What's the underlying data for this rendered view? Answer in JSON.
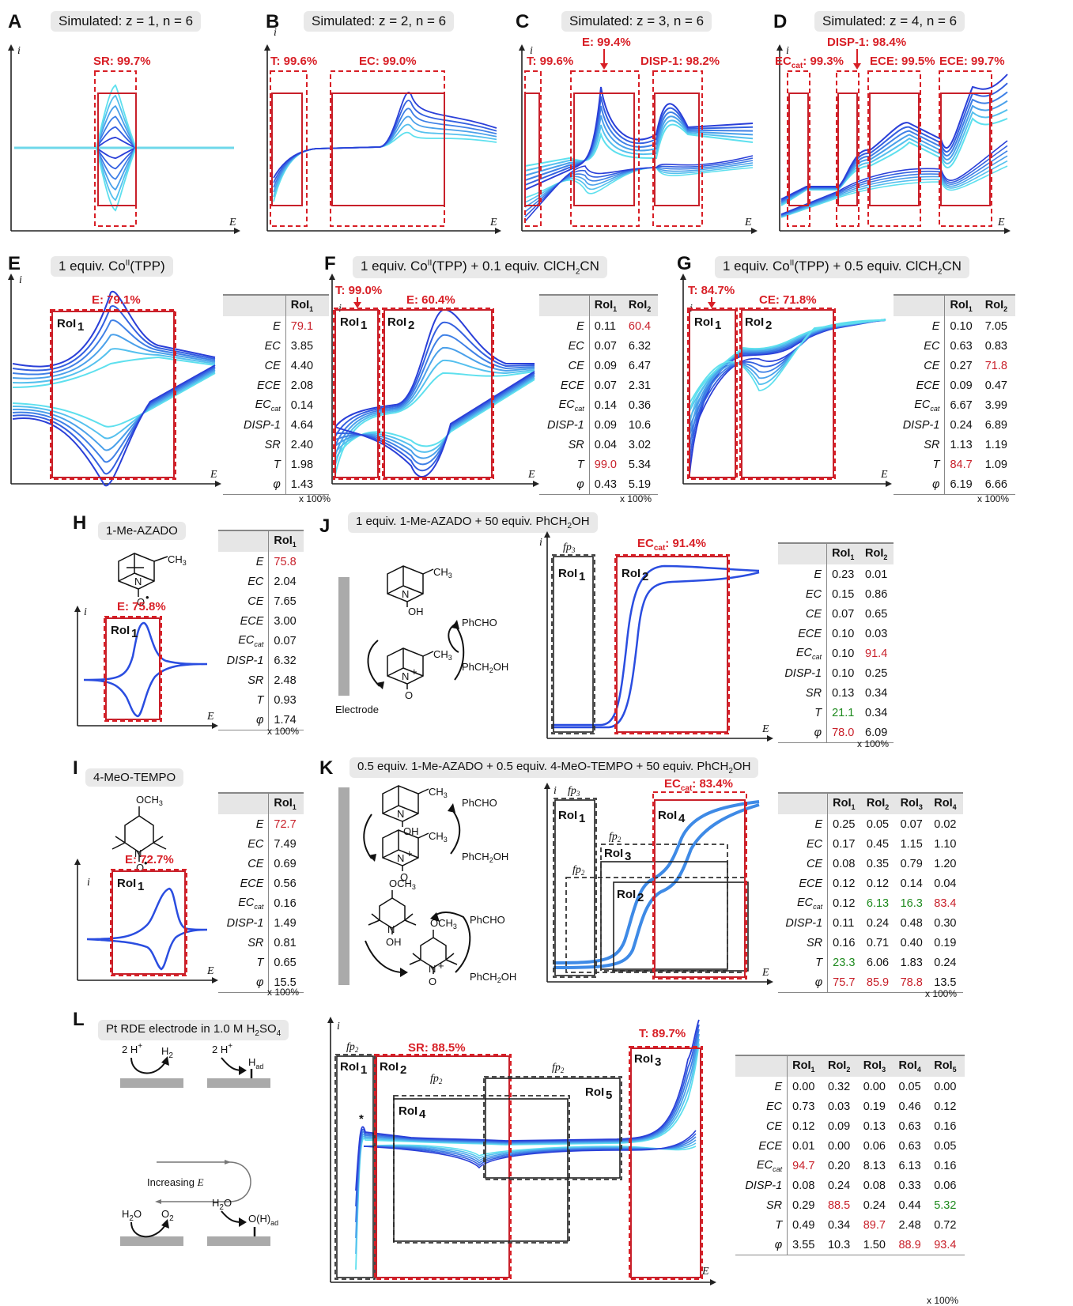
{
  "panels": {
    "A": {
      "label": "A",
      "title": "Simulated: z = 1, n = 6",
      "annot": [
        "SR: 99.7%"
      ]
    },
    "B": {
      "label": "B",
      "title": "Simulated: z = 2, n = 6",
      "annot": [
        "T: 99.6%",
        "EC: 99.0%"
      ]
    },
    "C": {
      "label": "C",
      "title": "Simulated: z = 3, n = 6",
      "annot": [
        "T: 99.6%",
        "E: 99.4%",
        "DISP-1: 98.2%"
      ]
    },
    "D": {
      "label": "D",
      "title": "Simulated: z = 4, n = 6",
      "annot": [
        "EC",
        "cat",
        ": 99.3%",
        "DISP-1: 98.4%",
        "ECE: 99.5%",
        "ECE: 99.7%"
      ]
    },
    "E": {
      "label": "E",
      "title": "1 equiv. Co",
      "title_sup": "II",
      "title_end": "(TPP)",
      "annot": [
        "E: 79.1%"
      ],
      "rois": [
        "RoI",
        "1"
      ]
    },
    "F": {
      "label": "F",
      "title": "1 equiv. Co",
      "title_sup": "II",
      "title_mid": "(TPP) + 0.1 equiv. ClCH",
      "title_sub": "2",
      "title_end": "CN",
      "annot": [
        "T: 99.0%",
        "E: 60.4%"
      ]
    },
    "G": {
      "label": "G",
      "title": "1 equiv. Co",
      "title_sup": "II",
      "title_mid": "(TPP) + 0.5 equiv. ClCH",
      "title_sub": "2",
      "title_end": "CN",
      "annot": [
        "T: 84.7%",
        "CE: 71.8%"
      ]
    },
    "H": {
      "label": "H",
      "title": "1-Me-AZADO",
      "annot": [
        "E: 75.8%"
      ]
    },
    "I": {
      "label": "I",
      "title": "4-MeO-TEMPO",
      "annot": [
        "E: 72.7%"
      ]
    },
    "J": {
      "label": "J",
      "title": "1 equiv. 1-Me-AZADO + 50 equiv. PhCH",
      "title_sub": "2",
      "title_end": "OH",
      "annot": [
        "EC",
        "cat",
        ": 91.4%"
      ],
      "fp": "fp",
      "fp_sub": "3",
      "electrode": "Electrode",
      "phcho": "PhCHO",
      "phch2oh": "PhCH",
      "phch2oh_end": "OH"
    },
    "K": {
      "label": "K",
      "title": "0.5 equiv. 1-Me-AZADO + 0.5 equiv. 4-MeO-TEMPO + 50 equiv. PhCH",
      "title_sub": "2",
      "title_end": "OH",
      "annot": [
        "EC",
        "cat",
        ": 83.4%"
      ],
      "fp3": "3",
      "fp2": "2"
    },
    "L": {
      "label": "L",
      "title": "Pt RDE electrode in 1.0 M H",
      "title_sub": "2",
      "title_end": "SO",
      "title_sub2": "4",
      "annot": [
        "SR: 88.5%",
        "T: 89.7%"
      ],
      "increasing": "Increasing",
      "increasing_var": "E",
      "h2": "H",
      "had": "H",
      "ad": "ad",
      "h2o": "H",
      "o2": "O",
      "oh_ad": "O(H)",
      "two_h": "2 H",
      "star": "*"
    }
  },
  "axes": {
    "i": "i",
    "E": "E"
  },
  "mech": {
    "ch3": "CH",
    "ch3_sub": "3",
    "oh": "OH",
    "n": "N",
    "o": "O",
    "och3": "OCH",
    "plus": "+",
    "rad": "•"
  },
  "rows": [
    "E",
    "EC",
    "CE",
    "ECE",
    "EC",
    "DISP-1",
    "SR",
    "T",
    "φ"
  ],
  "row_cat_index": 4,
  "row_cat_sub": "cat",
  "x100": "x 100%",
  "roi": "RoI",
  "tables": {
    "E": {
      "cols": [
        "1"
      ],
      "vals": [
        [
          "79.1"
        ],
        [
          "3.85"
        ],
        [
          "4.40"
        ],
        [
          "2.08"
        ],
        [
          "0.14"
        ],
        [
          "4.64"
        ],
        [
          "2.40"
        ],
        [
          "1.98"
        ],
        [
          "1.43"
        ]
      ],
      "red": [
        [
          0,
          0
        ]
      ],
      "green": []
    },
    "F": {
      "cols": [
        "1",
        "2"
      ],
      "vals": [
        [
          "0.11",
          "60.4"
        ],
        [
          "0.07",
          "6.32"
        ],
        [
          "0.09",
          "6.47"
        ],
        [
          "0.07",
          "2.31"
        ],
        [
          "0.14",
          "0.36"
        ],
        [
          "0.09",
          "10.6"
        ],
        [
          "0.04",
          "3.02"
        ],
        [
          "99.0",
          "5.34"
        ],
        [
          "0.43",
          "5.19"
        ]
      ],
      "red": [
        [
          0,
          1
        ],
        [
          7,
          0
        ]
      ],
      "green": []
    },
    "G": {
      "cols": [
        "1",
        "2"
      ],
      "vals": [
        [
          "0.10",
          "7.05"
        ],
        [
          "0.63",
          "0.83"
        ],
        [
          "0.27",
          "71.8"
        ],
        [
          "0.09",
          "0.47"
        ],
        [
          "6.67",
          "3.99"
        ],
        [
          "0.24",
          "6.89"
        ],
        [
          "1.13",
          "1.19"
        ],
        [
          "84.7",
          "1.09"
        ],
        [
          "6.19",
          "6.66"
        ]
      ],
      "red": [
        [
          2,
          1
        ],
        [
          7,
          0
        ]
      ],
      "green": []
    },
    "H": {
      "cols": [
        "1"
      ],
      "vals": [
        [
          "75.8"
        ],
        [
          "2.04"
        ],
        [
          "7.65"
        ],
        [
          "3.00"
        ],
        [
          "0.07"
        ],
        [
          "6.32"
        ],
        [
          "2.48"
        ],
        [
          "0.93"
        ],
        [
          "1.74"
        ]
      ],
      "red": [
        [
          0,
          0
        ]
      ],
      "green": []
    },
    "I": {
      "cols": [
        "1"
      ],
      "vals": [
        [
          "72.7"
        ],
        [
          "7.49"
        ],
        [
          "0.69"
        ],
        [
          "0.56"
        ],
        [
          "0.16"
        ],
        [
          "1.49"
        ],
        [
          "0.81"
        ],
        [
          "0.65"
        ],
        [
          "15.5"
        ]
      ],
      "red": [
        [
          0,
          0
        ]
      ],
      "green": []
    },
    "J": {
      "cols": [
        "1",
        "2"
      ],
      "vals": [
        [
          "0.23",
          "0.01"
        ],
        [
          "0.15",
          "0.86"
        ],
        [
          "0.07",
          "0.65"
        ],
        [
          "0.10",
          "0.03"
        ],
        [
          "0.10",
          "91.4"
        ],
        [
          "0.10",
          "0.25"
        ],
        [
          "0.13",
          "0.34"
        ],
        [
          "21.1",
          "0.34"
        ],
        [
          "78.0",
          "6.09"
        ]
      ],
      "red": [
        [
          4,
          1
        ],
        [
          8,
          0
        ]
      ],
      "green": [
        [
          7,
          0
        ]
      ]
    },
    "K": {
      "cols": [
        "1",
        "2",
        "3",
        "4"
      ],
      "vals": [
        [
          "0.25",
          "0.05",
          "0.07",
          "0.02"
        ],
        [
          "0.17",
          "0.45",
          "1.15",
          "1.10"
        ],
        [
          "0.08",
          "0.35",
          "0.79",
          "1.20"
        ],
        [
          "0.12",
          "0.12",
          "0.14",
          "0.04"
        ],
        [
          "0.12",
          "6.13",
          "16.3",
          "83.4"
        ],
        [
          "0.11",
          "0.24",
          "0.48",
          "0.30"
        ],
        [
          "0.16",
          "0.71",
          "0.40",
          "0.19"
        ],
        [
          "23.3",
          "6.06",
          "1.83",
          "0.24"
        ],
        [
          "75.7",
          "85.9",
          "78.8",
          "13.5"
        ]
      ],
      "red": [
        [
          4,
          3
        ],
        [
          8,
          0
        ],
        [
          8,
          1
        ],
        [
          8,
          2
        ]
      ],
      "green": [
        [
          4,
          1
        ],
        [
          4,
          2
        ],
        [
          7,
          0
        ]
      ]
    },
    "L": {
      "cols": [
        "1",
        "2",
        "3",
        "4",
        "5"
      ],
      "vals": [
        [
          "0.00",
          "0.32",
          "0.00",
          "0.05",
          "0.00"
        ],
        [
          "0.73",
          "0.03",
          "0.19",
          "0.46",
          "0.12"
        ],
        [
          "0.12",
          "0.09",
          "0.13",
          "0.63",
          "0.16"
        ],
        [
          "0.01",
          "0.00",
          "0.06",
          "0.63",
          "0.05"
        ],
        [
          "94.7",
          "0.20",
          "8.13",
          "6.13",
          "0.16"
        ],
        [
          "0.08",
          "0.24",
          "0.08",
          "0.33",
          "0.06"
        ],
        [
          "0.29",
          "88.5",
          "0.24",
          "0.44",
          "5.32"
        ],
        [
          "0.49",
          "0.34",
          "89.7",
          "2.48",
          "0.72"
        ],
        [
          "3.55",
          "10.3",
          "1.50",
          "88.9",
          "93.4"
        ]
      ],
      "red": [
        [
          4,
          0
        ],
        [
          6,
          1
        ],
        [
          7,
          2
        ],
        [
          8,
          3
        ],
        [
          8,
          4
        ]
      ],
      "green": [
        [
          6,
          4
        ]
      ]
    }
  },
  "colors": {
    "accent_red": "#d81f26",
    "dark_red": "#a51e22",
    "light_cyan": "#5ee0ee",
    "dark_blue": "#1f3fd6"
  }
}
